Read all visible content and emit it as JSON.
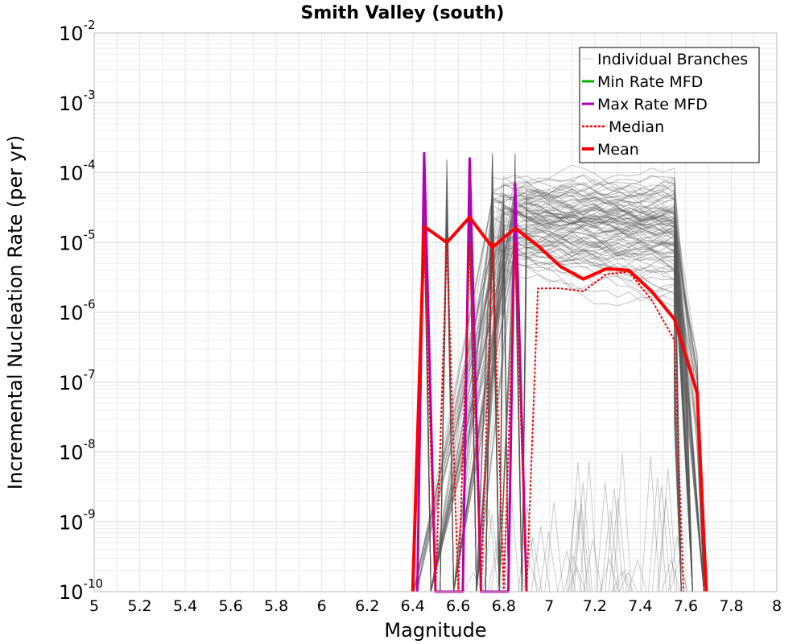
{
  "chart_data": {
    "type": "line",
    "title": "Smith Valley (south)",
    "xlabel": "Magnitude",
    "ylabel": "Incremental Nucleation Rate (per yr)",
    "xlim": [
      5.0,
      8.0
    ],
    "ylim": [
      1e-10,
      0.01
    ],
    "y_scale": "log",
    "grid": true,
    "legend_position": "top-right",
    "x_tick_labels": [
      "5",
      "5.2",
      "5.4",
      "5.6",
      "5.8",
      "6",
      "6.2",
      "6.4",
      "6.6",
      "6.8",
      "7",
      "7.2",
      "7.4",
      "7.6",
      "7.8",
      "8"
    ],
    "y_tick_labels": [
      {
        "base": "10",
        "exp": "-10"
      },
      {
        "base": "10",
        "exp": "-9"
      },
      {
        "base": "10",
        "exp": "-8"
      },
      {
        "base": "10",
        "exp": "-7"
      },
      {
        "base": "10",
        "exp": "-6"
      },
      {
        "base": "10",
        "exp": "-5"
      },
      {
        "base": "10",
        "exp": "-4"
      },
      {
        "base": "10",
        "exp": "-3"
      },
      {
        "base": "10",
        "exp": "-2"
      }
    ],
    "legend": [
      {
        "name": "Individual Branches",
        "color": "#c8c8c8",
        "style": "thin"
      },
      {
        "name": "Min Rate MFD",
        "color": "#00b400",
        "style": "solid"
      },
      {
        "name": "Max Rate MFD",
        "color": "#b400b4",
        "style": "solid"
      },
      {
        "name": "Median",
        "color": "#ff0000",
        "style": "dotted"
      },
      {
        "name": "Mean",
        "color": "#ff0000",
        "style": "thick"
      }
    ],
    "series": [
      {
        "name": "Mean",
        "color": "#ff0000",
        "x": [
          6.4,
          6.45,
          6.55,
          6.65,
          6.75,
          6.85,
          6.95,
          7.05,
          7.15,
          7.25,
          7.35,
          7.45,
          7.55,
          7.65,
          7.69
        ],
        "y": [
          1e-10,
          1.7e-05,
          1e-05,
          2.3e-05,
          8.5e-06,
          1.6e-05,
          9e-06,
          4.5e-06,
          3e-06,
          4.2e-06,
          4e-06,
          2e-06,
          8e-07,
          7e-08,
          1e-10
        ]
      },
      {
        "name": "Median",
        "color": "#ff0000",
        "x": [
          6.4,
          6.45,
          6.5,
          6.55,
          6.6,
          6.65,
          6.7,
          6.75,
          6.8,
          6.85,
          6.9,
          6.95,
          7.05,
          7.15,
          7.25,
          7.35,
          7.45,
          7.55,
          7.59
        ],
        "y": [
          1e-10,
          1e-05,
          1e-10,
          1e-05,
          1e-10,
          1e-05,
          1e-10,
          1e-05,
          1e-10,
          1e-05,
          1e-10,
          2.2e-06,
          2.2e-06,
          2e-06,
          3.5e-06,
          3.8e-06,
          1.5e-06,
          4e-07,
          1e-10
        ]
      },
      {
        "name": "Max Rate MFD",
        "color": "#b400b4",
        "x": [
          6.42,
          6.45,
          6.5,
          6.62,
          6.65,
          6.7,
          6.82,
          6.85,
          6.9
        ],
        "y": [
          1e-10,
          0.00019,
          1e-10,
          1e-10,
          0.00016,
          1e-10,
          1e-10,
          7e-05,
          1e-10
        ]
      },
      {
        "name": "Min Rate MFD",
        "color": "#00b400",
        "x": [],
        "y": []
      }
    ]
  }
}
